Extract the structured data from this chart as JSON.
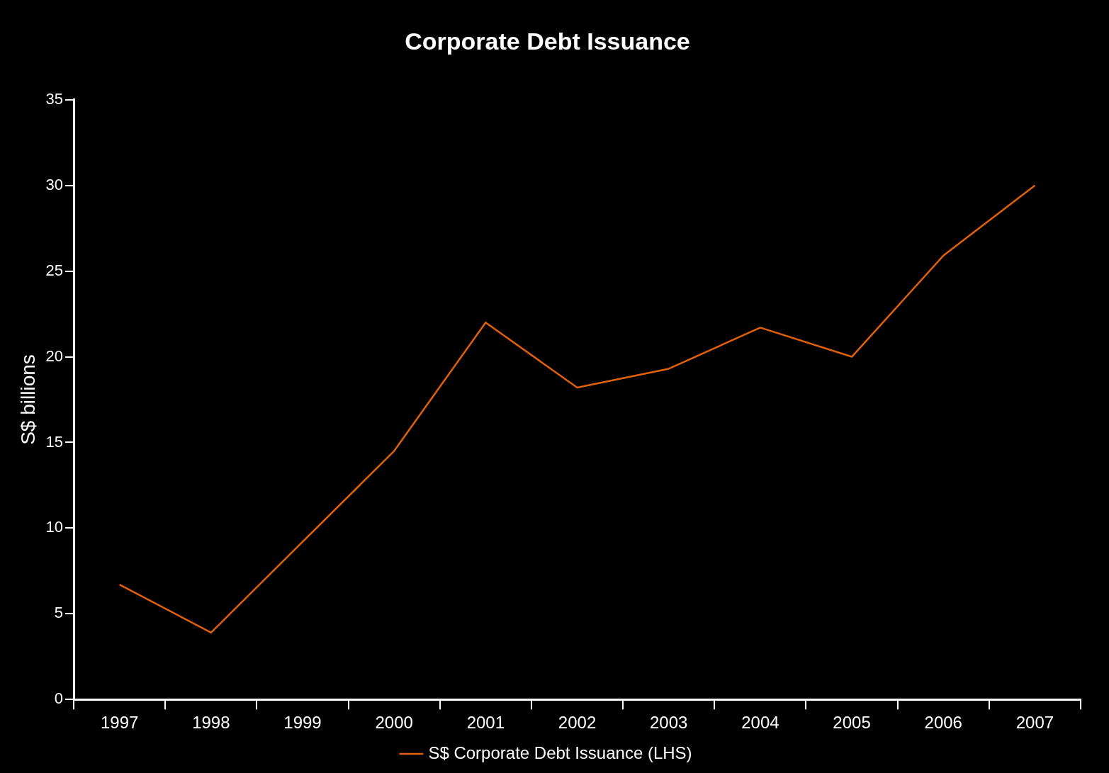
{
  "chart_data": {
    "type": "line",
    "title": "Corporate Debt Issuance",
    "ylabel": "S$ billions",
    "categories": [
      "1997",
      "1998",
      "1999",
      "2000",
      "2001",
      "2002",
      "2003",
      "2004",
      "2005",
      "2006",
      "2007"
    ],
    "series": [
      {
        "name": "S$ Corporate Debt Issuance (LHS)",
        "color": "#e0600c",
        "values": [
          6.7,
          3.9,
          9.2,
          14.5,
          22.0,
          18.2,
          19.3,
          21.7,
          20.0,
          25.9,
          30.0
        ]
      }
    ],
    "ylim": [
      0,
      35
    ],
    "yticks": [
      0,
      5,
      10,
      15,
      20,
      25,
      30,
      35
    ],
    "grid": false,
    "legend": "bottom",
    "marker": "none",
    "line_style": "solid"
  }
}
